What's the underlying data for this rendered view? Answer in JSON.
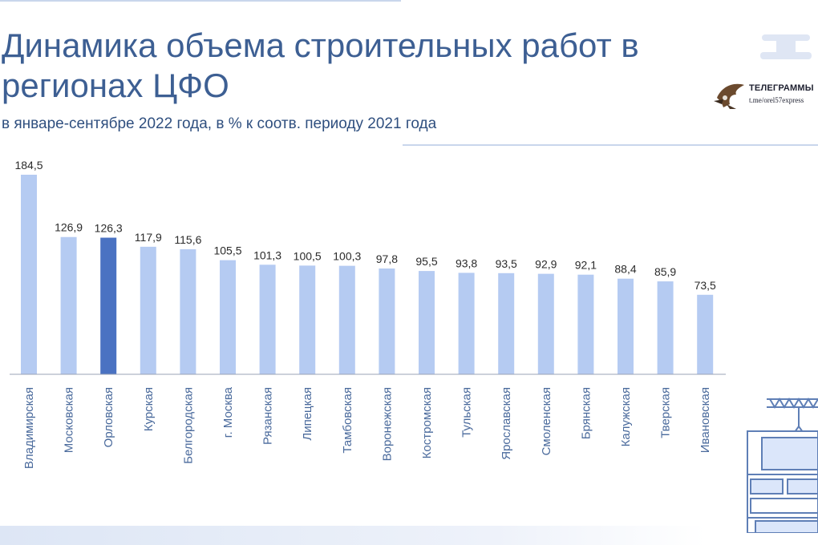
{
  "header": {
    "title": "Динамика объема строительных работ в регионах ЦФО",
    "subtitle": "в январе-сентябре 2022 года, в % к соотв. периоду 2021 года"
  },
  "logo": {
    "title": "ТЕЛЕГРАММЫ",
    "link": "t.me/orel57express",
    "icon": "eagle-icon"
  },
  "colors": {
    "bar": "#b5cbf2",
    "highlight": "#4a72c2",
    "axis": "#9aa3b5",
    "label": "#2b2b2b",
    "category": "#4a6a9c"
  },
  "chart_data": {
    "type": "bar",
    "categories": [
      "Владимирская",
      "Московская",
      "Орловская",
      "Курская",
      "Белгородская",
      "г. Москва",
      "Рязанская",
      "Липецкая",
      "Тамбовская",
      "Воронежская",
      "Костромская",
      "Тульская",
      "Ярославская",
      "Смоленская",
      "Брянская",
      "Калужская",
      "Тверская",
      "Ивановская"
    ],
    "values": [
      184.5,
      126.9,
      126.3,
      117.9,
      115.6,
      105.5,
      101.3,
      100.5,
      100.3,
      97.8,
      95.5,
      93.8,
      93.5,
      92.9,
      92.1,
      88.4,
      85.9,
      73.5
    ],
    "value_labels": [
      "184,5",
      "126,9",
      "126,3",
      "117,9",
      "115,6",
      "105,5",
      "101,3",
      "100,5",
      "100,3",
      "97,8",
      "95,5",
      "93,8",
      "93,5",
      "92,9",
      "92,1",
      "88,4",
      "85,9",
      "73,5"
    ],
    "highlighted_category": "Орловская",
    "ylim": [
      0,
      184.5
    ],
    "grid": false,
    "legend": "none"
  }
}
